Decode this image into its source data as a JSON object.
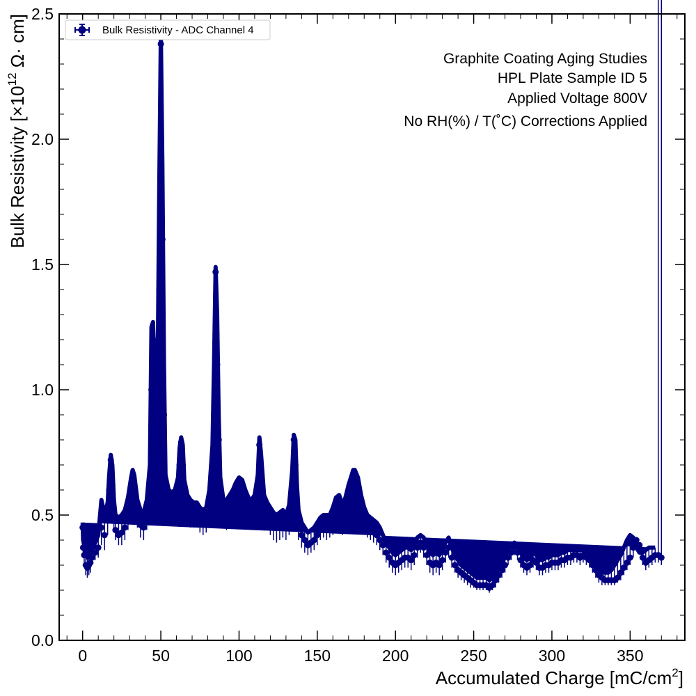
{
  "chart_data": {
    "type": "scatter",
    "xlabel": "Accumulated Charge [mC/cm²]",
    "xlabel_parts": {
      "main": "Accumulated Charge [mC/cm",
      "sup": "2",
      "close": "]"
    },
    "ylabel": "Bulk Resistivity [×10¹² Ω· cm]",
    "ylabel_parts": {
      "main": "Bulk Resistivity [×10",
      "sup": "12",
      "rest": " Ω· cm]"
    },
    "xlim": [
      -15,
      385
    ],
    "ylim": [
      0.0,
      2.5
    ],
    "x_ticks": [
      0,
      50,
      100,
      150,
      200,
      250,
      300,
      350
    ],
    "x_tick_labels": [
      "0",
      "50",
      "100",
      "150",
      "200",
      "250",
      "300",
      "350"
    ],
    "y_ticks": [
      0.0,
      0.5,
      1.0,
      1.5,
      2.0,
      2.5
    ],
    "y_tick_labels": [
      "0.0",
      "0.5",
      "1.0",
      "1.5",
      "2.0",
      "2.5"
    ],
    "grid": false,
    "legend": {
      "placement": "top-left",
      "entries": [
        "Bulk Resistivity - ADC Channel 4"
      ]
    },
    "annotations": [
      "Graphite Coating Aging Studies",
      "HPL Plate Sample ID 5",
      "Applied Voltage 800V",
      "No RH(%) / T(˚C) Corrections Applied"
    ],
    "series": [
      {
        "name": "Bulk Resistivity - ADC Channel 4",
        "color": "#000080",
        "marker": "circle-with-errorbars",
        "x": [
          0,
          0.3,
          1,
          2,
          3,
          4,
          5,
          6,
          8,
          10,
          12,
          14,
          16,
          17,
          18,
          19,
          20,
          21,
          23,
          25,
          27,
          29,
          31,
          32,
          33,
          35,
          37,
          39,
          41,
          43,
          44,
          45,
          46,
          47,
          48,
          49,
          50,
          51,
          52,
          53,
          55,
          57,
          59,
          61,
          62,
          63,
          64,
          65,
          67,
          69,
          71,
          73,
          75,
          77,
          79,
          81,
          83,
          84,
          85,
          86,
          87,
          88,
          90,
          92,
          94,
          96,
          98,
          100,
          102,
          104,
          106,
          108,
          110,
          112,
          113,
          114,
          116,
          118,
          120,
          122,
          124,
          126,
          128,
          130,
          132,
          134,
          135,
          136,
          137,
          138,
          140,
          142,
          144,
          146,
          148,
          150,
          152,
          154,
          156,
          158,
          160,
          162,
          164,
          166,
          168,
          170,
          172,
          173,
          174,
          176,
          178,
          180,
          182,
          184,
          186,
          188,
          190,
          192,
          194,
          196,
          198,
          200,
          202,
          204,
          206,
          208,
          210,
          212,
          214,
          216,
          218,
          220,
          222,
          224,
          226,
          228,
          230,
          232,
          234,
          236,
          238,
          240,
          242,
          244,
          246,
          248,
          250,
          252,
          254,
          256,
          258,
          260,
          262,
          264,
          266,
          268,
          270,
          272,
          274,
          276,
          278,
          280,
          282,
          284,
          286,
          288,
          290,
          292,
          294,
          296,
          298,
          300,
          302,
          304,
          306,
          308,
          310,
          312,
          314,
          316,
          318,
          320,
          322,
          324,
          326,
          328,
          330,
          332,
          334,
          336,
          338,
          340,
          342,
          344,
          346,
          348,
          350,
          352,
          354,
          356,
          358,
          360,
          362,
          364,
          366,
          368,
          370
        ],
        "y": [
          0.45,
          0.37,
          0.34,
          0.3,
          0.29,
          0.3,
          0.31,
          0.33,
          0.35,
          0.37,
          0.45,
          0.42,
          0.48,
          0.6,
          0.72,
          0.62,
          0.5,
          0.44,
          0.42,
          0.43,
          0.45,
          0.5,
          0.6,
          0.65,
          0.6,
          0.5,
          0.46,
          0.45,
          0.5,
          0.6,
          1.0,
          1.2,
          0.9,
          0.7,
          0.9,
          1.4,
          2.38,
          1.6,
          0.9,
          0.6,
          0.55,
          0.53,
          0.55,
          0.6,
          0.7,
          0.79,
          0.7,
          0.58,
          0.52,
          0.5,
          0.5,
          0.5,
          0.48,
          0.47,
          0.48,
          0.55,
          0.7,
          0.9,
          1.47,
          1.1,
          0.8,
          0.6,
          0.5,
          0.5,
          0.52,
          0.54,
          0.58,
          0.62,
          0.58,
          0.55,
          0.52,
          0.5,
          0.52,
          0.6,
          0.78,
          0.66,
          0.52,
          0.5,
          0.48,
          0.46,
          0.45,
          0.46,
          0.47,
          0.45,
          0.48,
          0.6,
          0.8,
          0.7,
          0.55,
          0.46,
          0.42,
          0.4,
          0.38,
          0.39,
          0.4,
          0.42,
          0.44,
          0.45,
          0.44,
          0.45,
          0.47,
          0.5,
          0.5,
          0.48,
          0.5,
          0.55,
          0.62,
          0.66,
          0.64,
          0.58,
          0.52,
          0.48,
          0.45,
          0.44,
          0.43,
          0.42,
          0.4,
          0.38,
          0.35,
          0.33,
          0.31,
          0.3,
          0.31,
          0.32,
          0.33,
          0.33,
          0.32,
          0.34,
          0.37,
          0.39,
          0.37,
          0.34,
          0.31,
          0.3,
          0.31,
          0.3,
          0.32,
          0.35,
          0.37,
          0.33,
          0.3,
          0.28,
          0.27,
          0.26,
          0.25,
          0.24,
          0.23,
          0.22,
          0.22,
          0.22,
          0.22,
          0.21,
          0.22,
          0.24,
          0.26,
          0.28,
          0.3,
          0.33,
          0.35,
          0.37,
          0.35,
          0.32,
          0.3,
          0.29,
          0.3,
          0.32,
          0.31,
          0.29,
          0.29,
          0.3,
          0.3,
          0.31,
          0.31,
          0.31,
          0.32,
          0.32,
          0.33,
          0.33,
          0.34,
          0.34,
          0.33,
          0.34,
          0.33,
          0.32,
          0.3,
          0.28,
          0.26,
          0.25,
          0.24,
          0.24,
          0.24,
          0.24,
          0.25,
          0.27,
          0.29,
          0.31,
          0.33,
          0.37,
          0.4,
          0.38,
          0.33,
          0.31,
          0.32,
          0.33,
          0.34,
          0.34,
          0.33
        ],
        "band_upper": [
          0.47,
          0.4,
          0.38,
          0.35,
          0.33,
          0.34,
          0.35,
          0.36,
          0.39,
          0.42,
          0.56,
          0.5,
          0.55,
          0.66,
          0.74,
          0.7,
          0.56,
          0.5,
          0.49,
          0.5,
          0.52,
          0.57,
          0.65,
          0.68,
          0.66,
          0.56,
          0.52,
          0.51,
          0.56,
          0.7,
          1.25,
          1.27,
          1.1,
          0.9,
          1.1,
          1.8,
          2.42,
          1.9,
          1.1,
          0.66,
          0.6,
          0.59,
          0.6,
          0.65,
          0.77,
          0.81,
          0.78,
          0.64,
          0.58,
          0.56,
          0.55,
          0.55,
          0.53,
          0.52,
          0.53,
          0.6,
          0.78,
          1.1,
          1.49,
          1.3,
          0.9,
          0.65,
          0.56,
          0.56,
          0.58,
          0.6,
          0.63,
          0.65,
          0.64,
          0.6,
          0.57,
          0.56,
          0.58,
          0.66,
          0.81,
          0.75,
          0.58,
          0.55,
          0.53,
          0.51,
          0.5,
          0.51,
          0.52,
          0.5,
          0.54,
          0.68,
          0.82,
          0.8,
          0.62,
          0.52,
          0.47,
          0.45,
          0.43,
          0.44,
          0.45,
          0.47,
          0.49,
          0.5,
          0.5,
          0.5,
          0.53,
          0.57,
          0.58,
          0.54,
          0.57,
          0.62,
          0.66,
          0.68,
          0.68,
          0.65,
          0.58,
          0.53,
          0.5,
          0.49,
          0.48,
          0.47,
          0.45,
          0.42,
          0.39,
          0.37,
          0.35,
          0.34,
          0.35,
          0.36,
          0.37,
          0.37,
          0.36,
          0.38,
          0.41,
          0.42,
          0.41,
          0.38,
          0.35,
          0.34,
          0.35,
          0.34,
          0.36,
          0.39,
          0.41,
          0.37,
          0.34,
          0.32,
          0.3,
          0.29,
          0.28,
          0.27,
          0.26,
          0.25,
          0.25,
          0.25,
          0.25,
          0.24,
          0.25,
          0.27,
          0.29,
          0.31,
          0.33,
          0.36,
          0.38,
          0.39,
          0.38,
          0.35,
          0.33,
          0.32,
          0.33,
          0.35,
          0.34,
          0.32,
          0.32,
          0.33,
          0.33,
          0.34,
          0.34,
          0.34,
          0.35,
          0.35,
          0.36,
          0.36,
          0.36,
          0.36,
          0.36,
          0.36,
          0.35,
          0.33,
          0.31,
          0.29,
          0.28,
          0.27,
          0.27,
          0.27,
          0.28,
          0.3,
          0.32,
          0.34,
          0.37,
          0.4,
          0.42,
          0.41,
          0.37,
          0.35,
          0.35,
          0.36,
          0.37,
          0.37,
          0.37
        ],
        "band_lower": [
          0.43,
          0.34,
          0.3,
          0.26,
          0.25,
          0.26,
          0.27,
          0.3,
          0.32,
          0.33,
          0.38,
          0.36,
          0.42,
          0.52,
          0.6,
          0.52,
          0.44,
          0.4,
          0.38,
          0.38,
          0.4,
          0.44,
          0.52,
          0.58,
          0.52,
          0.45,
          0.41,
          0.4,
          0.44,
          0.5,
          0.7,
          0.9,
          0.65,
          0.52,
          0.6,
          0.8,
          1.3,
          1.1,
          0.65,
          0.52,
          0.5,
          0.48,
          0.5,
          0.52,
          0.58,
          0.62,
          0.56,
          0.5,
          0.46,
          0.45,
          0.45,
          0.45,
          0.43,
          0.42,
          0.43,
          0.48,
          0.56,
          0.62,
          0.75,
          0.68,
          0.6,
          0.52,
          0.45,
          0.44,
          0.46,
          0.48,
          0.5,
          0.53,
          0.5,
          0.48,
          0.46,
          0.44,
          0.46,
          0.52,
          0.6,
          0.55,
          0.45,
          0.44,
          0.42,
          0.4,
          0.39,
          0.4,
          0.41,
          0.4,
          0.42,
          0.5,
          0.6,
          0.55,
          0.46,
          0.4,
          0.37,
          0.35,
          0.34,
          0.35,
          0.36,
          0.38,
          0.4,
          0.41,
          0.4,
          0.41,
          0.42,
          0.44,
          0.44,
          0.42,
          0.44,
          0.48,
          0.52,
          0.56,
          0.54,
          0.5,
          0.46,
          0.43,
          0.41,
          0.4,
          0.39,
          0.38,
          0.36,
          0.34,
          0.31,
          0.29,
          0.27,
          0.26,
          0.27,
          0.28,
          0.29,
          0.29,
          0.28,
          0.3,
          0.33,
          0.35,
          0.33,
          0.3,
          0.27,
          0.26,
          0.27,
          0.26,
          0.28,
          0.31,
          0.33,
          0.29,
          0.27,
          0.25,
          0.24,
          0.23,
          0.22,
          0.21,
          0.21,
          0.2,
          0.2,
          0.2,
          0.2,
          0.19,
          0.2,
          0.21,
          0.23,
          0.25,
          0.27,
          0.3,
          0.32,
          0.34,
          0.32,
          0.29,
          0.27,
          0.26,
          0.27,
          0.29,
          0.28,
          0.26,
          0.26,
          0.27,
          0.27,
          0.28,
          0.28,
          0.28,
          0.29,
          0.29,
          0.3,
          0.3,
          0.31,
          0.31,
          0.3,
          0.31,
          0.3,
          0.29,
          0.27,
          0.25,
          0.23,
          0.22,
          0.22,
          0.22,
          0.22,
          0.22,
          0.23,
          0.24,
          0.26,
          0.28,
          0.3,
          0.33,
          0.37,
          0.35,
          0.3,
          0.28,
          0.29,
          0.3,
          0.31,
          0.31,
          0.3
        ]
      }
    ]
  }
}
